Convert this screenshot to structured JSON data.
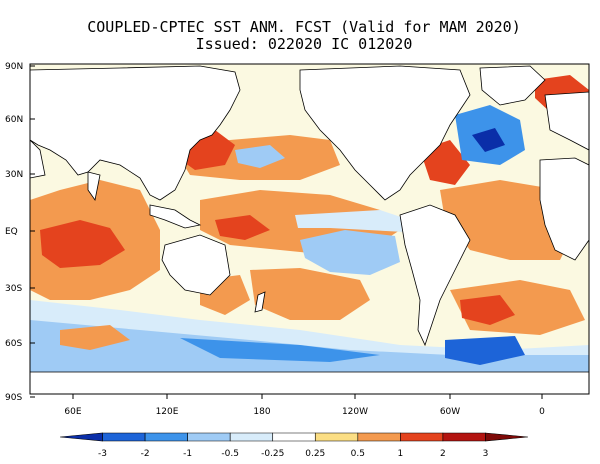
{
  "title": {
    "line1": "COUPLED-CPTEC SST ANM. FCST  (Valid for MAM 2020)",
    "line2": "Issued:  022020 IC 012020"
  },
  "map": {
    "lat_labels": [
      "90N",
      "60N",
      "30N",
      "EQ",
      "30S",
      "60S",
      "90S"
    ],
    "lon_labels": [
      "60E",
      "120E",
      "180",
      "120W",
      "60W",
      "0"
    ],
    "colors": {
      "land": "#ffffff",
      "coast": "#000000",
      "ocean_default": "#fbf9e1"
    }
  },
  "colorbar": {
    "ticks": [
      "-3",
      "-2",
      "-1",
      "-0.5",
      "-0.25",
      "0.25",
      "0.5",
      "1",
      "2",
      "3"
    ],
    "colors": [
      "#0a2ea8",
      "#1d64d8",
      "#3d93ea",
      "#9fcbf5",
      "#d8ecfa",
      "#ffffff",
      "#fbde84",
      "#f39a4f",
      "#e4431e",
      "#b31410",
      "#7e0a08"
    ]
  }
}
